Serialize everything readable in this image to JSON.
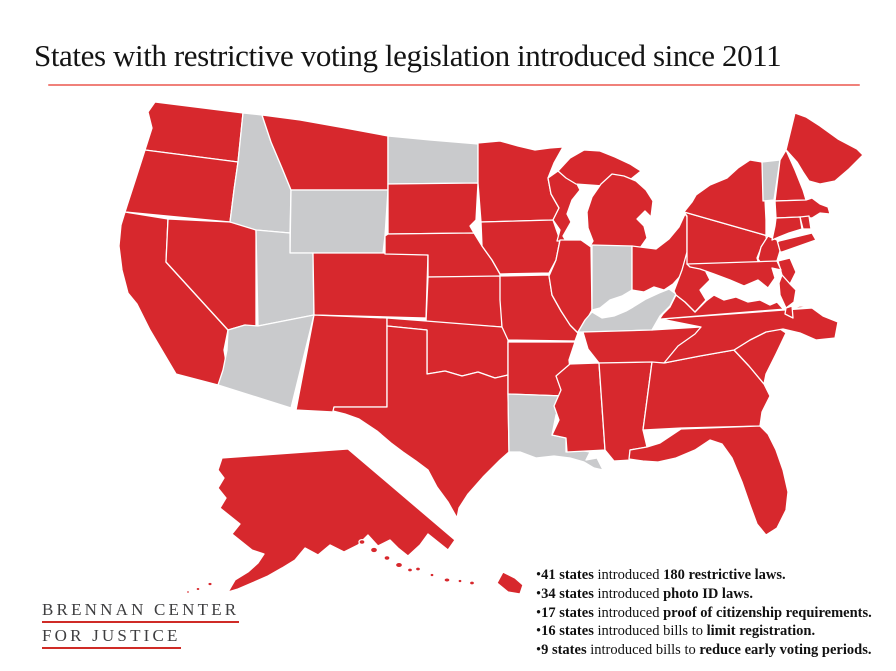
{
  "title": {
    "text": "States with restrictive voting legislation introduced since 2011",
    "underline_color": "#f0817a"
  },
  "logo": {
    "line1": "BRENNAN CENTER",
    "line2": "FOR JUSTICE",
    "underline_color": "#cf2b26",
    "text_color": "#3e3e40"
  },
  "stats": {
    "bullet_char": "•",
    "items": [
      {
        "segments": [
          {
            "t": "41 states",
            "b": true
          },
          {
            "t": " introduced ",
            "b": false
          },
          {
            "t": "180 restrictive laws.",
            "b": true
          }
        ]
      },
      {
        "segments": [
          {
            "t": "34 states",
            "b": true
          },
          {
            "t": " introduced ",
            "b": false
          },
          {
            "t": "photo ID laws.",
            "b": true
          }
        ]
      },
      {
        "segments": [
          {
            "t": "17 states",
            "b": true
          },
          {
            "t": " introduced ",
            "b": false
          },
          {
            "t": "proof of citizenship requirements.",
            "b": true
          }
        ]
      },
      {
        "segments": [
          {
            "t": "16 states",
            "b": true
          },
          {
            "t": " introduced bills to ",
            "b": false
          },
          {
            "t": "limit registration.",
            "b": true
          }
        ]
      },
      {
        "segments": [
          {
            "t": "9 states",
            "b": true
          },
          {
            "t": " introduced bills to ",
            "b": false
          },
          {
            "t": "reduce early voting periods.",
            "b": true
          }
        ]
      }
    ]
  },
  "map": {
    "colors": {
      "restrictive": "#d7282d",
      "no_legislation": "#c9cacc",
      "border": "#ffffff"
    },
    "states": [
      {
        "id": "WA",
        "name": "Washington",
        "restrictive": true
      },
      {
        "id": "OR",
        "name": "Oregon",
        "restrictive": true
      },
      {
        "id": "CA",
        "name": "California",
        "restrictive": true
      },
      {
        "id": "NV",
        "name": "Nevada",
        "restrictive": true
      },
      {
        "id": "ID",
        "name": "Idaho",
        "restrictive": false
      },
      {
        "id": "MT",
        "name": "Montana",
        "restrictive": true
      },
      {
        "id": "WY",
        "name": "Wyoming",
        "restrictive": false
      },
      {
        "id": "UT",
        "name": "Utah",
        "restrictive": false
      },
      {
        "id": "CO",
        "name": "Colorado",
        "restrictive": true
      },
      {
        "id": "AZ",
        "name": "Arizona",
        "restrictive": false
      },
      {
        "id": "NM",
        "name": "New Mexico",
        "restrictive": true
      },
      {
        "id": "ND",
        "name": "North Dakota",
        "restrictive": false
      },
      {
        "id": "SD",
        "name": "South Dakota",
        "restrictive": true
      },
      {
        "id": "NE",
        "name": "Nebraska",
        "restrictive": true
      },
      {
        "id": "KS",
        "name": "Kansas",
        "restrictive": true
      },
      {
        "id": "OK",
        "name": "Oklahoma",
        "restrictive": true
      },
      {
        "id": "TX",
        "name": "Texas",
        "restrictive": true
      },
      {
        "id": "MN",
        "name": "Minnesota",
        "restrictive": true
      },
      {
        "id": "IA",
        "name": "Iowa",
        "restrictive": true
      },
      {
        "id": "MO",
        "name": "Missouri",
        "restrictive": true
      },
      {
        "id": "AR",
        "name": "Arkansas",
        "restrictive": true
      },
      {
        "id": "LA",
        "name": "Louisiana",
        "restrictive": false
      },
      {
        "id": "WI",
        "name": "Wisconsin",
        "restrictive": true
      },
      {
        "id": "IL",
        "name": "Illinois",
        "restrictive": true
      },
      {
        "id": "MI",
        "name": "Michigan",
        "restrictive": true
      },
      {
        "id": "IN",
        "name": "Indiana",
        "restrictive": false
      },
      {
        "id": "OH",
        "name": "Ohio",
        "restrictive": true
      },
      {
        "id": "KY",
        "name": "Kentucky",
        "restrictive": false
      },
      {
        "id": "TN",
        "name": "Tennessee",
        "restrictive": true
      },
      {
        "id": "MS",
        "name": "Mississippi",
        "restrictive": true
      },
      {
        "id": "AL",
        "name": "Alabama",
        "restrictive": true
      },
      {
        "id": "GA",
        "name": "Georgia",
        "restrictive": true
      },
      {
        "id": "FL",
        "name": "Florida",
        "restrictive": true
      },
      {
        "id": "SC",
        "name": "South Carolina",
        "restrictive": true
      },
      {
        "id": "NC",
        "name": "North Carolina",
        "restrictive": true
      },
      {
        "id": "VA",
        "name": "Virginia",
        "restrictive": true
      },
      {
        "id": "WV",
        "name": "West Virginia",
        "restrictive": true
      },
      {
        "id": "PA",
        "name": "Pennsylvania",
        "restrictive": true
      },
      {
        "id": "NY",
        "name": "New York",
        "restrictive": true
      },
      {
        "id": "NJ",
        "name": "New Jersey",
        "restrictive": true
      },
      {
        "id": "DE",
        "name": "Delaware",
        "restrictive": true
      },
      {
        "id": "MD",
        "name": "Maryland",
        "restrictive": true
      },
      {
        "id": "VT",
        "name": "Vermont",
        "restrictive": false
      },
      {
        "id": "NH",
        "name": "New Hampshire",
        "restrictive": true
      },
      {
        "id": "ME",
        "name": "Maine",
        "restrictive": true
      },
      {
        "id": "MA",
        "name": "Massachusetts",
        "restrictive": true
      },
      {
        "id": "RI",
        "name": "Rhode Island",
        "restrictive": true
      },
      {
        "id": "CT",
        "name": "Connecticut",
        "restrictive": true
      },
      {
        "id": "AK",
        "name": "Alaska",
        "restrictive": true
      },
      {
        "id": "HI",
        "name": "Hawaii",
        "restrictive": true
      }
    ]
  }
}
